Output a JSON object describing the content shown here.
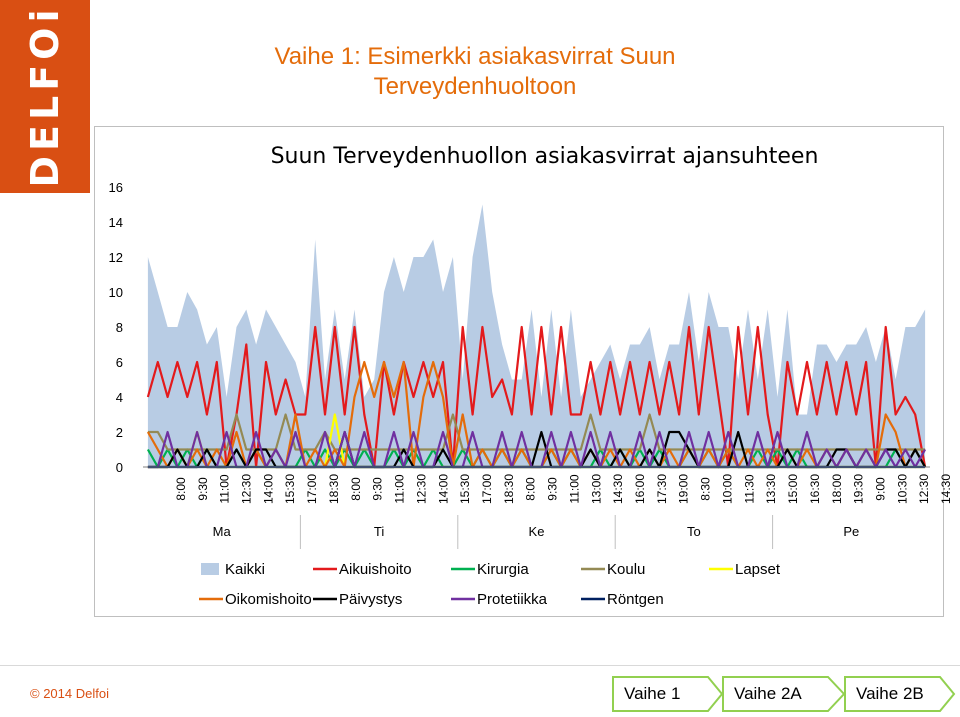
{
  "logo": {
    "text": "DELFOi"
  },
  "slide": {
    "title_line1": "Vaihe 1: Esimerkki asiakasvirrat Suun",
    "title_line2": "Terveydenhuoltoon"
  },
  "footer": {
    "copyright": "© 2014 Delfoi",
    "steps": [
      {
        "label": "Vaihe 1",
        "fill": "#ffffff"
      },
      {
        "label": "Vaihe 2A",
        "fill": "#ffffff"
      },
      {
        "label": "Vaihe 2B",
        "fill": "#ffffff"
      }
    ],
    "accent": "#92d050"
  },
  "chart_data": {
    "type": "area",
    "title": "Suun Terveydenhuollon asiakasvirrat ajansuhteen",
    "ylim": [
      0,
      16
    ],
    "yticks": [
      0,
      2,
      4,
      6,
      8,
      10,
      12,
      14,
      16
    ],
    "grid": false,
    "legend_position": "bottom",
    "x_count": 80,
    "x_tick_labels": [
      "8:00",
      "9:30",
      "11:00",
      "12:30",
      "14:00",
      "15:30",
      "17:00",
      "18:30",
      "8:00",
      "9:30",
      "11:00",
      "12:30",
      "14:00",
      "15:30",
      "17:00",
      "18:30",
      "8:00",
      "9:30",
      "11:00",
      "13:00",
      "14:30",
      "16:00",
      "17:30",
      "19:00",
      "8:30",
      "10:00",
      "11:30",
      "13:30",
      "15:00",
      "16:30",
      "18:00",
      "19:30",
      "9:00",
      "10:30",
      "12:30",
      "14:30"
    ],
    "day_groups": [
      {
        "label": "Ma",
        "start": 0,
        "end": 16
      },
      {
        "label": "Ti",
        "start": 16,
        "end": 32
      },
      {
        "label": "Ke",
        "start": 32,
        "end": 48
      },
      {
        "label": "To",
        "start": 48,
        "end": 64
      },
      {
        "label": "Pe",
        "start": 64,
        "end": 80
      }
    ],
    "series": [
      {
        "name": "Kaikki",
        "kind": "area",
        "color": "#b8cce4",
        "values": [
          12,
          10,
          8,
          8,
          10,
          9,
          7,
          8,
          4,
          8,
          9,
          7,
          9,
          8,
          7,
          6,
          4,
          13,
          5,
          9,
          5,
          9,
          4,
          5,
          10,
          12,
          10,
          12,
          12,
          13,
          10,
          12,
          5,
          12,
          15,
          10,
          7,
          5,
          5,
          9,
          4,
          9,
          4,
          9,
          4,
          5,
          6,
          7,
          5,
          7,
          7,
          8,
          5,
          7,
          7,
          10,
          6,
          10,
          8,
          8,
          5,
          9,
          5,
          9,
          4,
          9,
          3,
          3,
          7,
          7,
          6,
          7,
          7,
          8,
          6,
          8,
          5,
          8,
          8,
          9
        ]
      },
      {
        "name": "Aikuishoito",
        "kind": "line",
        "color": "#e31a1c",
        "values": [
          4,
          6,
          4,
          6,
          4,
          6,
          3,
          6,
          0,
          3,
          7,
          0,
          6,
          3,
          5,
          3,
          3,
          8,
          3,
          8,
          3,
          8,
          3,
          0,
          6,
          3,
          6,
          4,
          6,
          4,
          6,
          0,
          8,
          3,
          8,
          4,
          5,
          3,
          8,
          3,
          8,
          3,
          8,
          3,
          3,
          6,
          3,
          6,
          3,
          6,
          3,
          6,
          3,
          6,
          3,
          8,
          3,
          8,
          4,
          0,
          8,
          3,
          8,
          3,
          0,
          6,
          3,
          6,
          3,
          6,
          3,
          6,
          3,
          6,
          0,
          8,
          3,
          4,
          3,
          0
        ]
      },
      {
        "name": "Kirurgia",
        "kind": "line",
        "color": "#00b050",
        "values": [
          1,
          0,
          1,
          0,
          1,
          0,
          1,
          0,
          0,
          1,
          0,
          1,
          0,
          1,
          0,
          0,
          1,
          0,
          1,
          0,
          1,
          0,
          1,
          0,
          0,
          1,
          0,
          1,
          0,
          1,
          0,
          0,
          1,
          0,
          1,
          0,
          1,
          0,
          1,
          0,
          0,
          1,
          0,
          1,
          0,
          0,
          1,
          0,
          1,
          0,
          1,
          0,
          1,
          0,
          0,
          1,
          0,
          1,
          0,
          1,
          0,
          0,
          1,
          0,
          1,
          0,
          1,
          0,
          0,
          1,
          0,
          1,
          0,
          1,
          0,
          0,
          1,
          0,
          1,
          0
        ]
      },
      {
        "name": "Koulu",
        "kind": "line",
        "color": "#948a54",
        "values": [
          2,
          2,
          1,
          1,
          1,
          1,
          1,
          1,
          1,
          3,
          1,
          1,
          1,
          1,
          3,
          1,
          1,
          1,
          2,
          1,
          1,
          1,
          1,
          1,
          1,
          1,
          1,
          1,
          1,
          1,
          1,
          3,
          1,
          1,
          1,
          1,
          1,
          1,
          1,
          1,
          1,
          1,
          1,
          1,
          1,
          3,
          1,
          1,
          1,
          1,
          1,
          3,
          1,
          1,
          1,
          1,
          1,
          1,
          1,
          1,
          1,
          1,
          1,
          1,
          1,
          1,
          1,
          1,
          1,
          1,
          1,
          1,
          1,
          1,
          1,
          1,
          1,
          1,
          1,
          1
        ]
      },
      {
        "name": "Lapset",
        "kind": "line",
        "color": "#ffff00",
        "values": [
          0,
          0,
          0,
          1,
          0,
          2,
          0,
          0,
          0,
          0,
          0,
          0,
          0,
          0,
          0,
          0,
          0,
          0,
          0,
          3,
          0,
          0,
          0,
          0,
          0,
          0,
          0,
          0,
          0,
          0,
          0,
          0,
          0,
          0,
          0,
          0,
          0,
          0,
          0,
          0,
          0,
          0,
          0,
          0,
          0,
          0,
          0,
          0,
          0,
          0,
          0,
          0,
          0,
          0,
          0,
          0,
          0,
          0,
          0,
          0,
          0,
          0,
          0,
          0,
          0,
          0,
          0,
          0,
          0,
          0,
          0,
          0,
          0,
          0,
          0,
          0,
          0,
          0,
          0,
          0
        ]
      },
      {
        "name": "Oikomishoito",
        "kind": "line",
        "color": "#e46c0a",
        "values": [
          2,
          1,
          0,
          1,
          0,
          1,
          0,
          1,
          0,
          2,
          0,
          1,
          0,
          1,
          0,
          3,
          0,
          1,
          0,
          1,
          0,
          4,
          6,
          4,
          6,
          4,
          6,
          0,
          4,
          6,
          4,
          0,
          3,
          0,
          1,
          0,
          1,
          0,
          1,
          0,
          0,
          1,
          0,
          1,
          0,
          1,
          0,
          1,
          0,
          1,
          0,
          1,
          0,
          1,
          0,
          1,
          0,
          1,
          0,
          1,
          0,
          1,
          0,
          1,
          0,
          1,
          0,
          1,
          0,
          1,
          0,
          1,
          0,
          1,
          0,
          3,
          2,
          0,
          1,
          0
        ]
      },
      {
        "name": "Päivystys",
        "kind": "line",
        "color": "#000000",
        "values": [
          0,
          0,
          0,
          1,
          0,
          0,
          1,
          0,
          0,
          1,
          0,
          1,
          1,
          0,
          0,
          0,
          0,
          0,
          0,
          0,
          2,
          0,
          0,
          0,
          0,
          0,
          1,
          0,
          0,
          0,
          1,
          0,
          0,
          0,
          0,
          0,
          0,
          0,
          0,
          0,
          2,
          0,
          0,
          0,
          0,
          1,
          0,
          0,
          1,
          0,
          0,
          1,
          0,
          2,
          2,
          1,
          0,
          0,
          0,
          0,
          2,
          0,
          0,
          0,
          0,
          1,
          0,
          0,
          0,
          0,
          1,
          1,
          0,
          0,
          0,
          1,
          1,
          0,
          1,
          0
        ]
      },
      {
        "name": "Protetiikka",
        "kind": "line",
        "color": "#7030a0",
        "values": [
          0,
          0,
          2,
          0,
          0,
          2,
          0,
          0,
          2,
          0,
          0,
          2,
          0,
          1,
          0,
          2,
          0,
          0,
          2,
          0,
          2,
          0,
          2,
          0,
          0,
          2,
          0,
          2,
          0,
          0,
          2,
          0,
          0,
          2,
          0,
          0,
          2,
          0,
          2,
          0,
          0,
          2,
          0,
          2,
          0,
          2,
          0,
          2,
          0,
          0,
          2,
          0,
          2,
          0,
          0,
          2,
          0,
          2,
          0,
          2,
          0,
          0,
          2,
          0,
          2,
          0,
          0,
          2,
          0,
          1,
          0,
          1,
          0,
          1,
          0,
          1,
          0,
          1,
          0,
          1
        ]
      },
      {
        "name": "Röntgen",
        "kind": "line",
        "color": "#002060",
        "values": [
          0,
          0,
          0,
          0,
          0,
          0,
          0,
          0,
          0,
          0,
          0,
          0,
          0,
          0,
          0,
          0,
          0,
          0,
          0,
          0,
          0,
          0,
          0,
          0,
          0,
          0,
          0,
          0,
          0,
          0,
          0,
          0,
          0,
          0,
          0,
          0,
          0,
          0,
          0,
          0,
          0,
          0,
          0,
          0,
          0,
          0,
          0,
          0,
          0,
          0,
          0,
          0,
          0,
          0,
          0,
          0,
          0,
          0,
          0,
          0,
          0,
          0,
          0,
          0,
          0,
          0,
          0,
          0,
          0,
          0,
          0,
          0,
          0,
          0,
          0,
          0,
          0,
          0,
          0,
          0
        ]
      }
    ]
  }
}
